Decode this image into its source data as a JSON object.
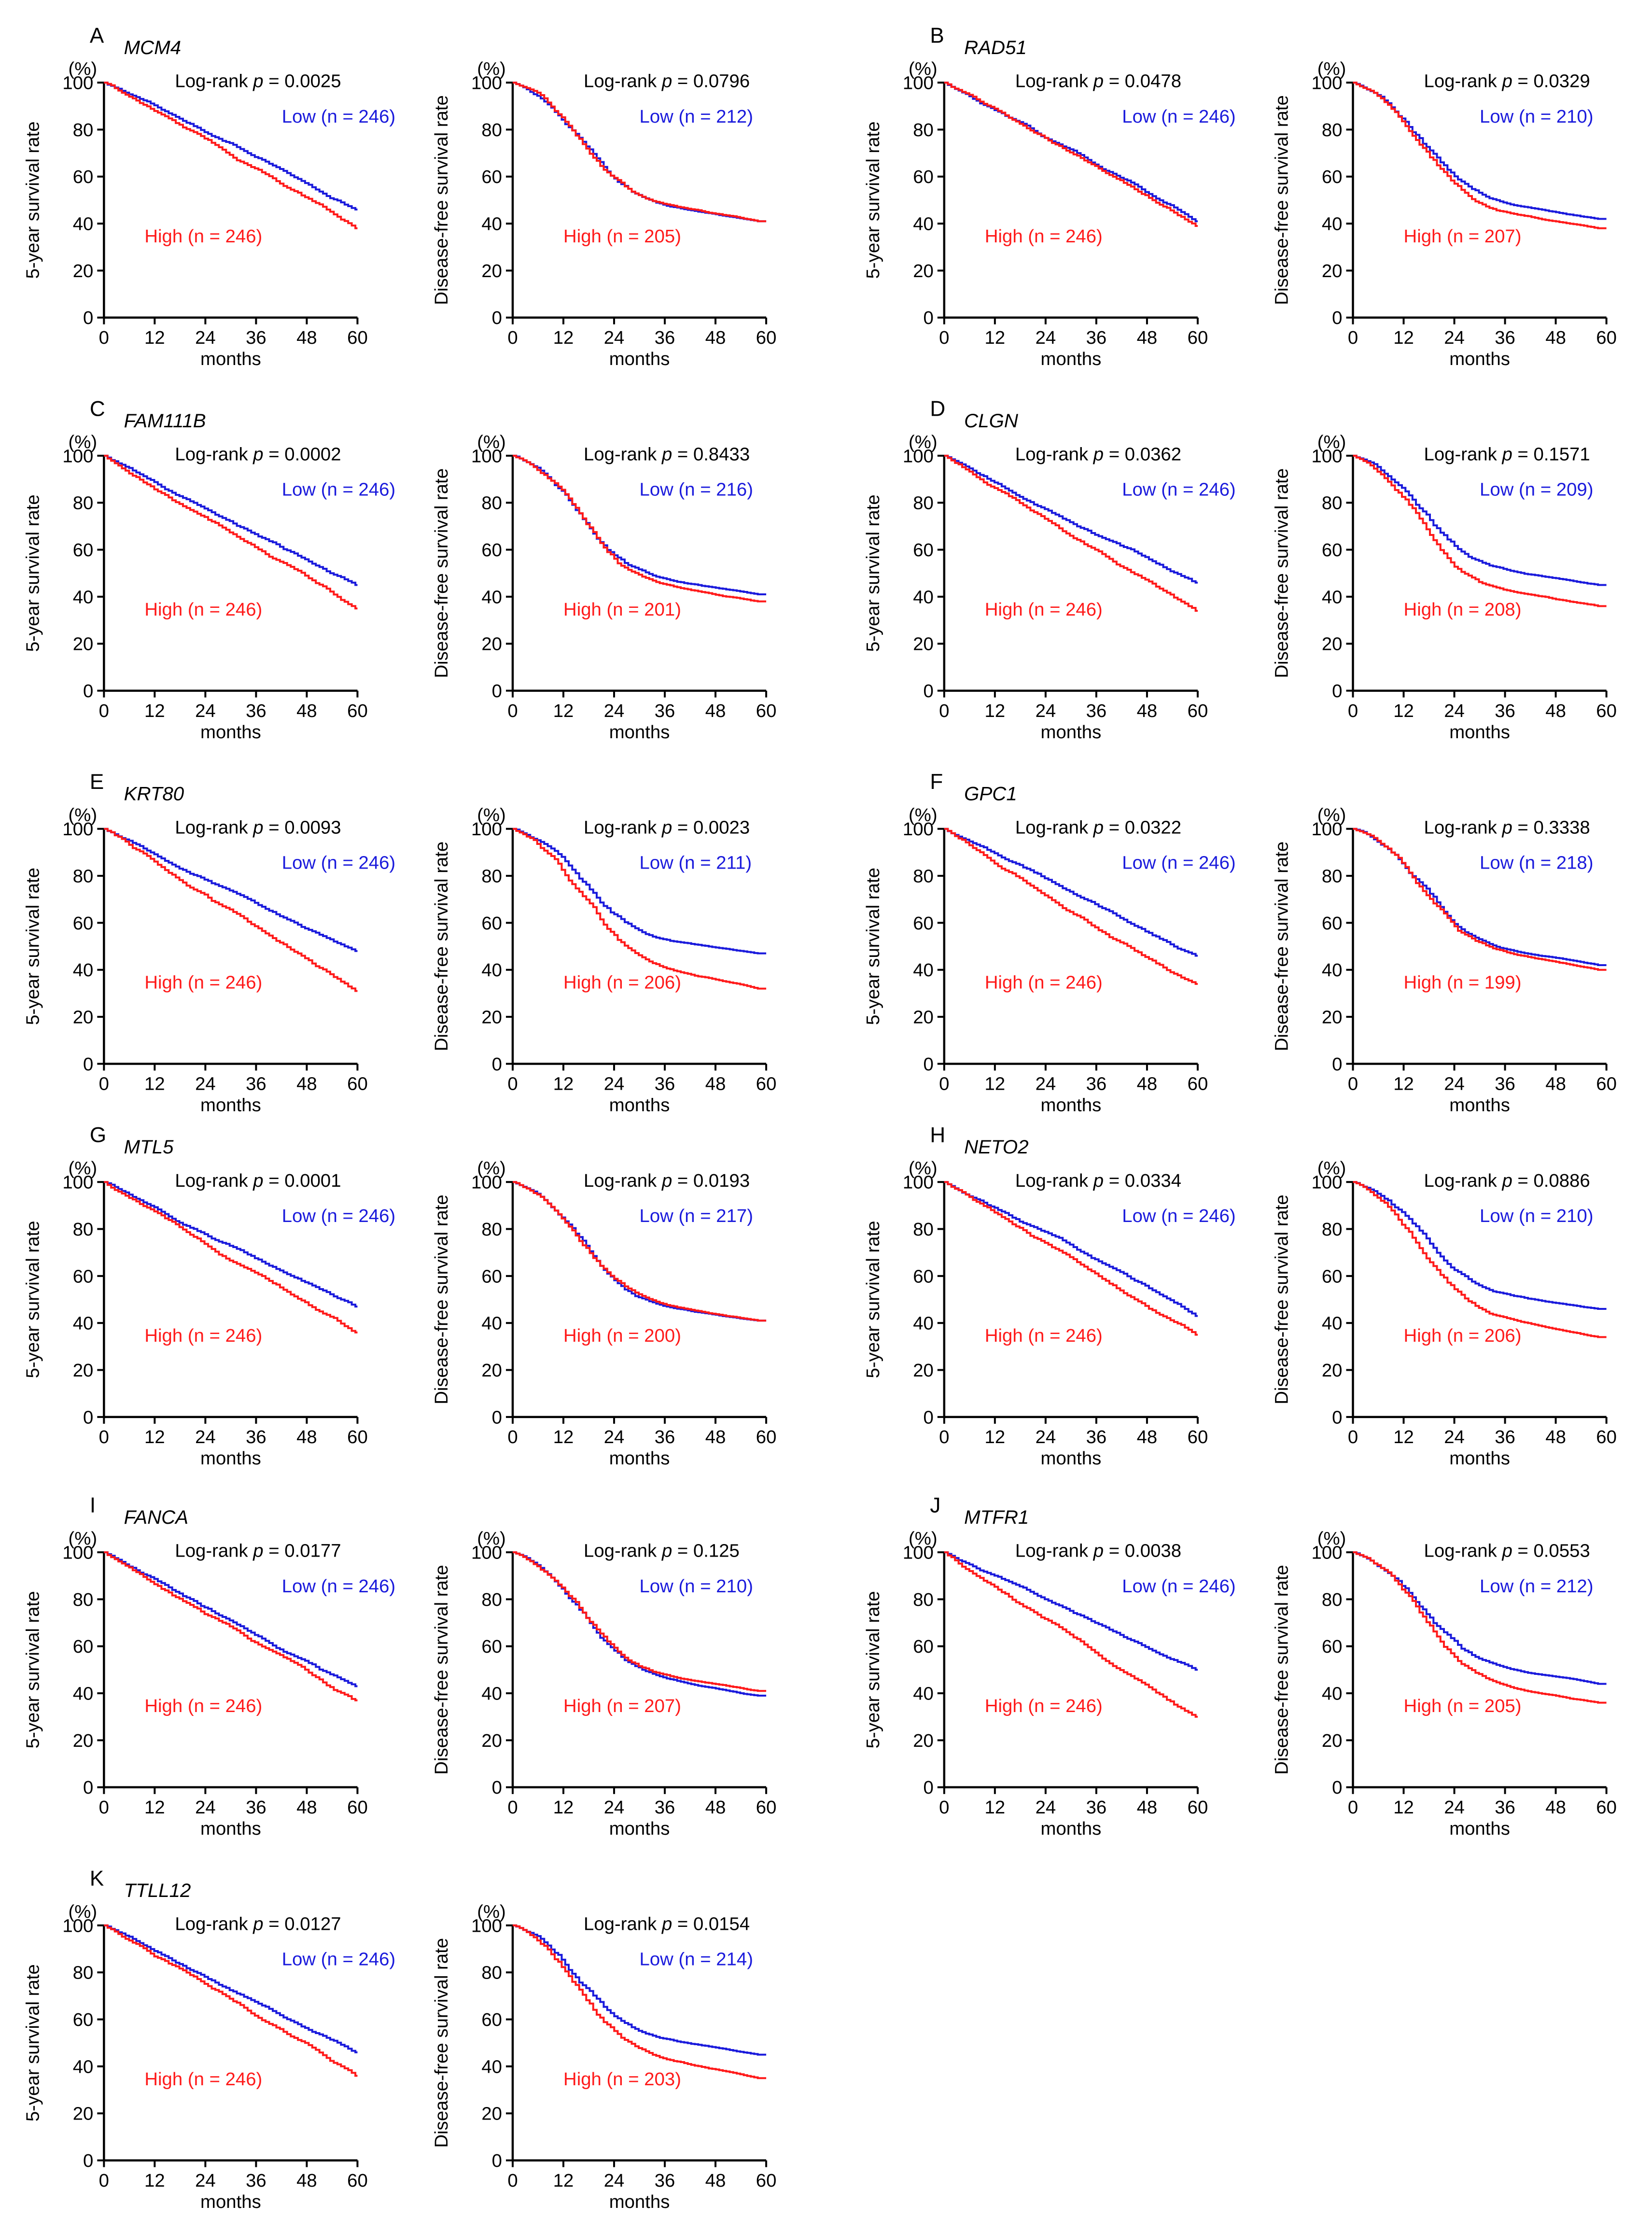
{
  "panels": [
    {
      "letter": "A",
      "gene": "MCM4",
      "os": {
        "p": "0.0025",
        "low_label": "Low (n = 246)",
        "high_label": "High (n = 246)",
        "low_final": 46,
        "high_final": 38
      },
      "dfs": {
        "p": "0.0796",
        "low_label": "Low (n = 212)",
        "high_label": "High (n = 205)",
        "low_final": 41,
        "high_final": 41
      }
    },
    {
      "letter": "B",
      "gene": "RAD51",
      "os": {
        "p": "0.0478",
        "low_label": "Low (n = 246)",
        "high_label": "High (n = 246)",
        "low_final": 41,
        "high_final": 39
      },
      "dfs": {
        "p": "0.0329",
        "low_label": "Low (n = 210)",
        "high_label": "High (n = 207)",
        "low_final": 42,
        "high_final": 38
      }
    },
    {
      "letter": "C",
      "gene": "FAM111B",
      "os": {
        "p": "0.0002",
        "low_label": "Low (n = 246)",
        "high_label": "High (n = 246)",
        "low_final": 45,
        "high_final": 35
      },
      "dfs": {
        "p": "0.8433",
        "low_label": "Low (n = 216)",
        "high_label": "High (n = 201)",
        "low_final": 41,
        "high_final": 38
      }
    },
    {
      "letter": "D",
      "gene": "CLGN",
      "os": {
        "p": "0.0362",
        "low_label": "Low (n = 246)",
        "high_label": "High (n = 246)",
        "low_final": 46,
        "high_final": 34
      },
      "dfs": {
        "p": "0.1571",
        "low_label": "Low (n = 209)",
        "high_label": "High (n = 208)",
        "low_final": 45,
        "high_final": 36
      }
    },
    {
      "letter": "E",
      "gene": "KRT80",
      "os": {
        "p": "0.0093",
        "low_label": "Low (n = 246)",
        "high_label": "High (n = 246)",
        "low_final": 48,
        "high_final": 31
      },
      "dfs": {
        "p": "0.0023",
        "low_label": "Low (n = 211)",
        "high_label": "High (n = 206)",
        "low_final": 47,
        "high_final": 32
      }
    },
    {
      "letter": "F",
      "gene": "GPC1",
      "os": {
        "p": "0.0322",
        "low_label": "Low (n = 246)",
        "high_label": "High (n = 246)",
        "low_final": 46,
        "high_final": 34
      },
      "dfs": {
        "p": "0.3338",
        "low_label": "Low (n = 218)",
        "high_label": "High (n = 199)",
        "low_final": 42,
        "high_final": 40
      }
    },
    {
      "letter": "G",
      "gene": "MTL5",
      "os": {
        "p": "0.0001",
        "low_label": "Low (n = 246)",
        "high_label": "High (n = 246)",
        "low_final": 47,
        "high_final": 36
      },
      "dfs": {
        "p": "0.0193",
        "low_label": "Low (n = 217)",
        "high_label": "High (n = 200)",
        "low_final": 41,
        "high_final": 41
      }
    },
    {
      "letter": "H",
      "gene": "NETO2",
      "os": {
        "p": "0.0334",
        "low_label": "Low (n = 246)",
        "high_label": "High (n = 246)",
        "low_final": 43,
        "high_final": 35
      },
      "dfs": {
        "p": "0.0886",
        "low_label": "Low (n = 210)",
        "high_label": "High (n = 206)",
        "low_final": 46,
        "high_final": 34
      }
    },
    {
      "letter": "I",
      "gene": "FANCA",
      "os": {
        "p": "0.0177",
        "low_label": "Low (n = 246)",
        "high_label": "High (n = 246)",
        "low_final": 43,
        "high_final": 37
      },
      "dfs": {
        "p": "0.125",
        "low_label": "Low (n = 210)",
        "high_label": "High (n = 207)",
        "low_final": 39,
        "high_final": 41
      }
    },
    {
      "letter": "J",
      "gene": "MTFR1",
      "os": {
        "p": "0.0038",
        "low_label": "Low (n = 246)",
        "high_label": "High (n = 246)",
        "low_final": 50,
        "high_final": 30
      },
      "dfs": {
        "p": "0.0553",
        "low_label": "Low (n = 212)",
        "high_label": "High (n = 205)",
        "low_final": 44,
        "high_final": 36
      }
    },
    {
      "letter": "K",
      "gene": "TTLL12",
      "os": {
        "p": "0.0127",
        "low_label": "Low (n = 246)",
        "high_label": "High (n = 246)",
        "low_final": 46,
        "high_final": 36
      },
      "dfs": {
        "p": "0.0154",
        "low_label": "Low (n = 214)",
        "high_label": "High (n = 203)",
        "low_final": 45,
        "high_final": 35
      }
    }
  ],
  "chart_data": {
    "type": "line",
    "description_values": "Kaplan-Meier step curves; values are final survival percentages at 60 months read from the plots.",
    "x_ticks": [
      0,
      12,
      24,
      36,
      48,
      60
    ],
    "y_ticks": [
      0,
      20,
      40,
      60,
      80,
      100
    ],
    "xlim": [
      0,
      60
    ],
    "ylim": [
      0,
      100
    ],
    "xlabel": "months",
    "ylabel_os": "5-year survival rate",
    "ylabel_dfs": "Disease-free survival rate",
    "y_unit": "(%)",
    "p_prefix": "Log-rank ",
    "p_symbol": "p",
    "p_equals": " = ",
    "colors": {
      "low": "#1a1adc",
      "high": "#ff1a1a",
      "axis": "#000000"
    }
  }
}
